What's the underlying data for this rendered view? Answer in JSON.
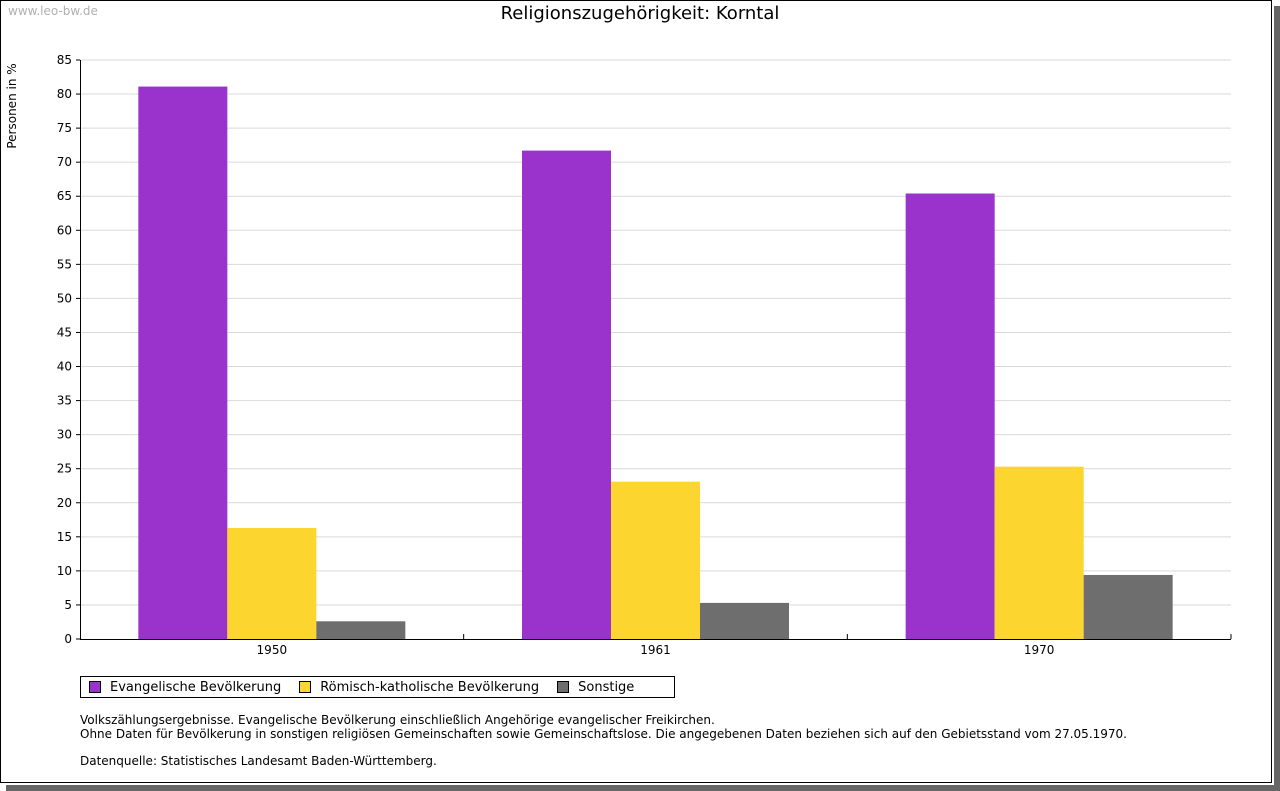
{
  "watermark": "www.leo-bw.de",
  "chart_data": {
    "type": "bar",
    "title": "Religionszugehörigkeit: Korntal",
    "xlabel": "",
    "ylabel": "Personen in %",
    "ylim": [
      0,
      85
    ],
    "yticks": [
      0,
      5,
      10,
      15,
      20,
      25,
      30,
      35,
      40,
      45,
      50,
      55,
      60,
      65,
      70,
      75,
      80,
      85
    ],
    "grid": true,
    "legend_position": "bottom",
    "categories": [
      "1950",
      "1961",
      "1970"
    ],
    "series": [
      {
        "name": "Evangelische Bevölkerung",
        "color": "#9933cc",
        "values": [
          81.1,
          71.7,
          65.4
        ]
      },
      {
        "name": "Römisch-katholische Bevölkerung",
        "color": "#fcd52f",
        "values": [
          16.3,
          23.1,
          25.3
        ]
      },
      {
        "name": "Sonstige",
        "color": "#6e6e6e",
        "values": [
          2.6,
          5.3,
          9.4
        ]
      }
    ]
  },
  "notes": {
    "line1": "Volkszählungsergebnisse. Evangelische Bevölkerung einschließlich Angehörige evangelischer Freikirchen.",
    "line2": "Ohne Daten für Bevölkerung in sonstigen religiösen Gemeinschaften sowie Gemeinschaftslose. Die angegebenen Daten beziehen sich auf den Gebietsstand vom 27.05.1970.",
    "source": "Datenquelle: Statistisches Landesamt Baden-Württemberg."
  }
}
